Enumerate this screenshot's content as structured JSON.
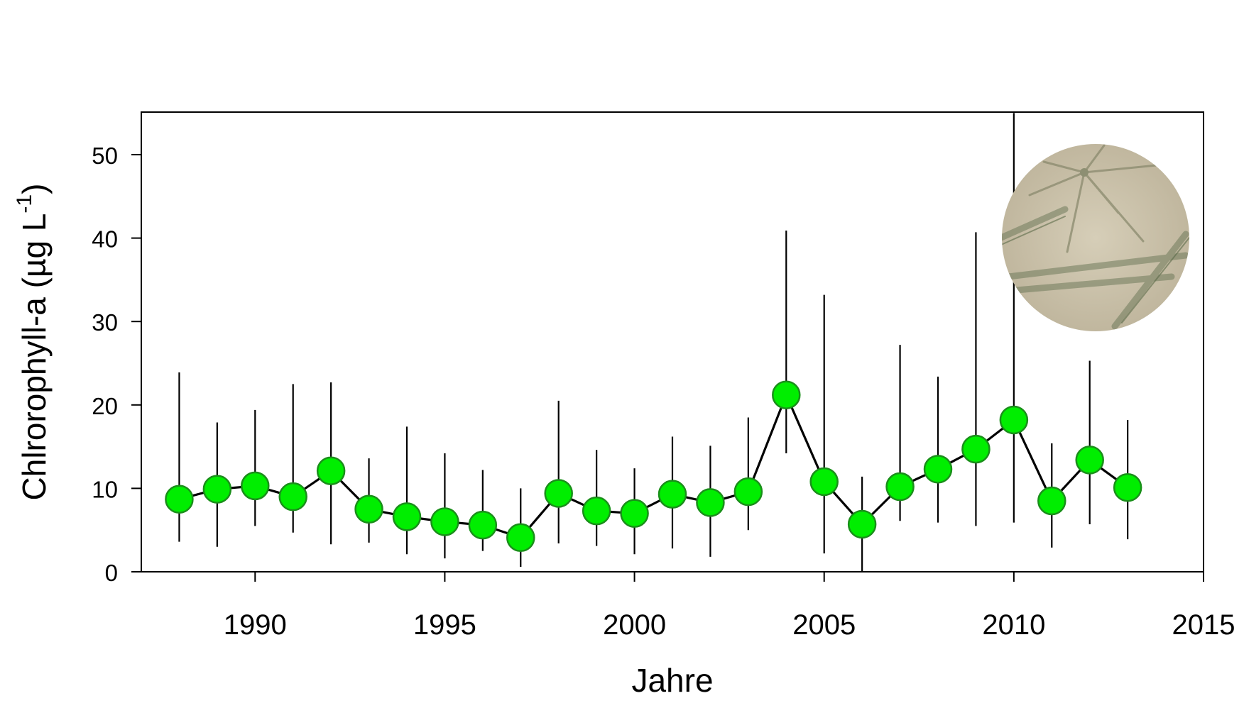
{
  "chart_data": {
    "type": "line",
    "title": "",
    "xlabel": "Jahre",
    "ylabel": "Chlrorophyll-a (µg L",
    "ylabel_superscript": "-1",
    "ylabel_suffix": ")",
    "xlim": [
      1987,
      2015
    ],
    "ylim": [
      0,
      55
    ],
    "xticks": [
      1990,
      1995,
      2000,
      2005,
      2010,
      2015
    ],
    "yticks": [
      0,
      10,
      20,
      30,
      40,
      50
    ],
    "grid": false,
    "legend": "none",
    "colors": {
      "marker_fill": "#00ee00",
      "marker_edge": "#1a8f1a",
      "line": "#000000"
    },
    "inset_image": "diatom-micrograph",
    "series": [
      {
        "x": [
          1988,
          1989,
          1990,
          1991,
          1992,
          1993,
          1994,
          1995,
          1996,
          1997,
          1998,
          1999,
          2000,
          2001,
          2002,
          2003,
          2004,
          2005,
          2006,
          2007,
          2008,
          2009,
          2010,
          2011,
          2012,
          2013
        ],
        "y": [
          8.7,
          9.9,
          10.3,
          9.0,
          12.1,
          7.5,
          6.6,
          6.0,
          5.6,
          4.1,
          9.4,
          7.3,
          7.0,
          9.3,
          8.3,
          9.6,
          21.2,
          10.8,
          5.7,
          10.2,
          12.3,
          14.7,
          18.2,
          8.5,
          13.4,
          10.1
        ],
        "err_low": [
          3.6,
          3.0,
          5.5,
          4.7,
          3.3,
          3.5,
          2.1,
          1.6,
          2.5,
          0.6,
          3.4,
          3.1,
          2.1,
          2.8,
          1.8,
          5.0,
          14.2,
          2.2,
          -0.2,
          6.1,
          5.9,
          5.5,
          5.9,
          2.9,
          5.7,
          3.9
        ],
        "err_high": [
          23.9,
          17.9,
          19.4,
          22.5,
          22.7,
          13.6,
          17.4,
          14.2,
          12.2,
          10.0,
          20.5,
          14.6,
          12.4,
          16.2,
          15.1,
          18.5,
          40.9,
          33.2,
          11.4,
          27.2,
          23.4,
          40.7,
          55.0,
          15.4,
          25.3,
          18.2
        ]
      }
    ]
  }
}
